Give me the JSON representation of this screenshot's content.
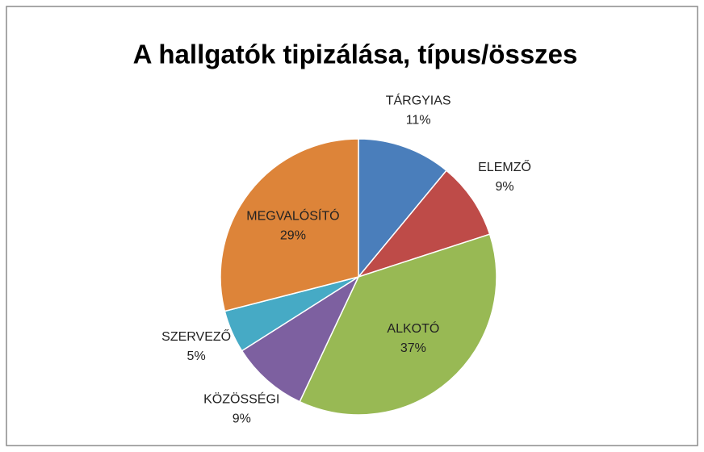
{
  "chart_data": {
    "type": "pie",
    "title": "A hallgatók tipizálása, típus/összes",
    "categories": [
      "TÁRGYIAS",
      "ELEMZŐ",
      "ALKOTÓ",
      "KÖZÖSSÉGI",
      "SZERVEZŐ",
      "MEGVALÓSÍTÓ"
    ],
    "values": [
      11,
      9,
      37,
      9,
      5,
      29
    ],
    "value_labels": [
      "11%",
      "9%",
      "37%",
      "9%",
      "5%",
      "29%"
    ],
    "colors": [
      "#4a7ebb",
      "#be4b48",
      "#98b954",
      "#7d60a0",
      "#46aac5",
      "#dd8439"
    ]
  }
}
